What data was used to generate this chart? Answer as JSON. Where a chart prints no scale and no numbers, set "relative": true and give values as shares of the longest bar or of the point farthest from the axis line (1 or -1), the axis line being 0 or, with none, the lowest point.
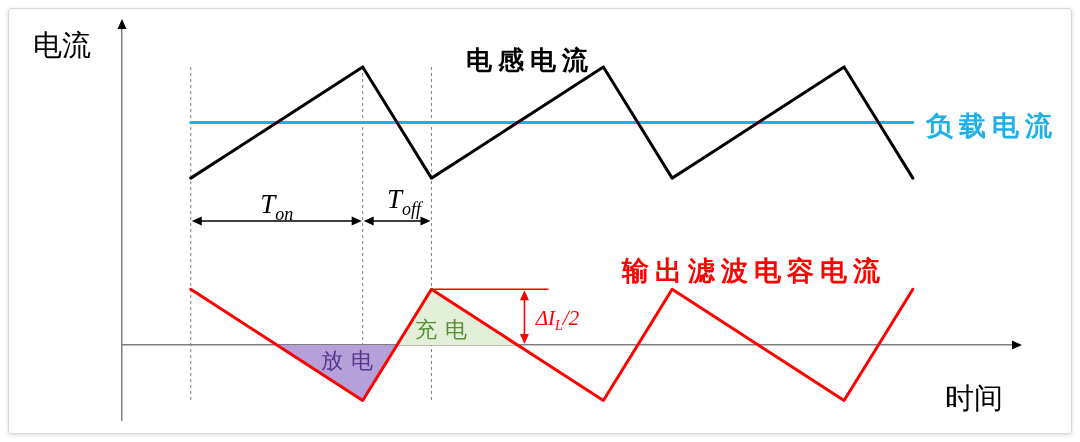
{
  "chart_data": {
    "type": "line",
    "relative": true,
    "marker": "none",
    "grid": "x",
    "ylabel": "电流",
    "xlabel": "时间",
    "categories": [
      null,
      null,
      null,
      null,
      null,
      null,
      null,
      null,
      null,
      null,
      null,
      null,
      null,
      null,
      null,
      null,
      null,
      null,
      null,
      null,
      null,
      null,
      null,
      null,
      null,
      null,
      null
    ],
    "series": [
      {
        "name": "电感电流",
        "color": "#000000",
        "values": [
          null,
          null,
          0.6,
          0.68,
          0.76,
          0.84,
          0.92,
          1,
          0.8,
          0.6,
          0.68,
          0.76,
          0.84,
          0.92,
          1,
          0.8,
          0.6,
          0.68,
          0.76,
          0.84,
          0.92,
          1,
          0.8,
          0.6,
          null,
          null,
          null
        ]
      },
      {
        "name": "负载电流",
        "color": "#1fb0e8",
        "values": [
          null,
          null,
          0.8,
          0.8,
          0.8,
          0.8,
          0.8,
          0.8,
          0.8,
          0.8,
          0.8,
          0.8,
          0.8,
          0.8,
          0.8,
          0.8,
          0.8,
          0.8,
          0.8,
          0.8,
          0.8,
          0.8,
          0.8,
          0.8,
          null,
          null,
          null
        ]
      },
      {
        "name": "输出滤波电容电流",
        "color": "#ff0000",
        "values": [
          null,
          null,
          0.2,
          0.12,
          0.04,
          -0.04,
          -0.12,
          -0.2,
          0,
          0.2,
          0.12,
          0.04,
          -0.04,
          -0.12,
          -0.2,
          0,
          0.2,
          0.12,
          0.04,
          -0.04,
          -0.12,
          -0.2,
          0,
          0.2,
          null,
          null,
          null
        ]
      },
      {
        "name": "放电",
        "type": "area",
        "color": "#b6a0d9",
        "values": [
          null,
          null,
          null,
          null,
          0.04,
          -0.04,
          -0.12,
          -0.2,
          0,
          null,
          null,
          null,
          null,
          null,
          null,
          null,
          null,
          null,
          null,
          null,
          null,
          null,
          null,
          null,
          null,
          null,
          null
        ]
      },
      {
        "name": "充电",
        "type": "area",
        "color": "#e2f0d9",
        "values": [
          null,
          null,
          null,
          null,
          null,
          null,
          null,
          null,
          0,
          0.2,
          0.12,
          0.04,
          -0.04,
          null,
          null,
          null,
          null,
          null,
          null,
          null,
          null,
          null,
          null,
          null,
          null,
          null,
          null
        ]
      }
    ],
    "annotations": [
      "T$_{on}$",
      "T$_{off}$",
      "ΔI$_{L}$/2"
    ]
  }
}
